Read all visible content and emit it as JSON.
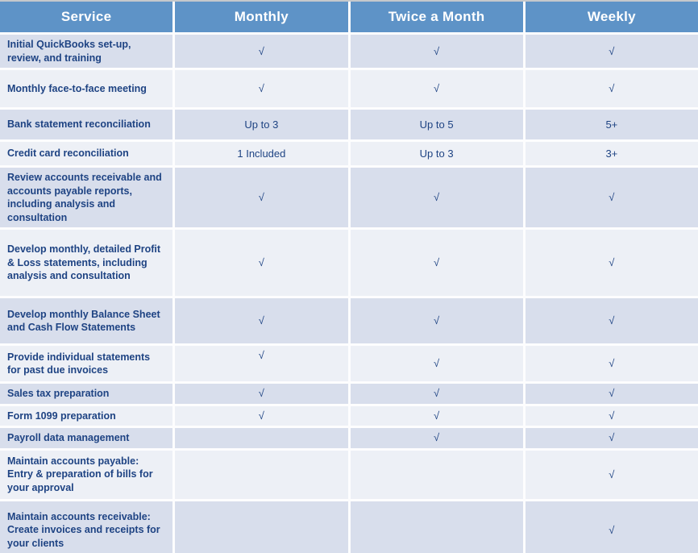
{
  "table": {
    "columns": [
      "Service",
      "Monthly",
      "Twice a Month",
      "Weekly"
    ],
    "checkmark_glyph": "√",
    "colors": {
      "header_bg": "#5e93c7",
      "header_text": "#ffffff",
      "row_dark": "#d8deec",
      "row_light": "#edf0f6",
      "body_text": "#1e4383",
      "top_bar": "#c5c8cc",
      "bottom_bar": "#99a0a8"
    },
    "rows": [
      {
        "service": "Initial QuickBooks set-up, review, and training",
        "monthly": "√",
        "twice_a_month": "√",
        "weekly": "√"
      },
      {
        "service": "Monthly face-to-face meeting",
        "monthly": "√",
        "twice_a_month": "√",
        "weekly": "√"
      },
      {
        "service": "Bank statement reconciliation",
        "monthly": "Up to 3",
        "twice_a_month": "Up to 5",
        "weekly": "5+"
      },
      {
        "service": "Credit card reconciliation",
        "monthly": "1 Included",
        "twice_a_month": "Up to 3",
        "weekly": "3+"
      },
      {
        "service": "Review accounts receivable and accounts payable reports, including analysis and consultation",
        "monthly": "√",
        "twice_a_month": "√",
        "weekly": "√"
      },
      {
        "service": "Develop monthly, detailed Profit & Loss statements, including analysis and consultation",
        "monthly": "√",
        "twice_a_month": "√",
        "weekly": "√"
      },
      {
        "service": "Develop monthly Balance Sheet and Cash Flow Statements",
        "monthly": "√",
        "twice_a_month": "√",
        "weekly": "√"
      },
      {
        "service": "Provide individual statements for past due invoices",
        "monthly": "√",
        "twice_a_month": "√",
        "weekly": "√"
      },
      {
        "service": "Sales tax preparation",
        "monthly": "√",
        "twice_a_month": "√",
        "weekly": "√"
      },
      {
        "service": "Form 1099 preparation",
        "monthly": "√",
        "twice_a_month": "√",
        "weekly": "√"
      },
      {
        "service": "Payroll data management",
        "monthly": "",
        "twice_a_month": "√",
        "weekly": "√"
      },
      {
        "service": "Maintain accounts payable: Entry & preparation of bills for your approval",
        "monthly": "",
        "twice_a_month": "",
        "weekly": "√"
      },
      {
        "service": "Maintain accounts receivable: Create invoices and receipts for your clients",
        "monthly": "",
        "twice_a_month": "",
        "weekly": "√"
      }
    ]
  }
}
